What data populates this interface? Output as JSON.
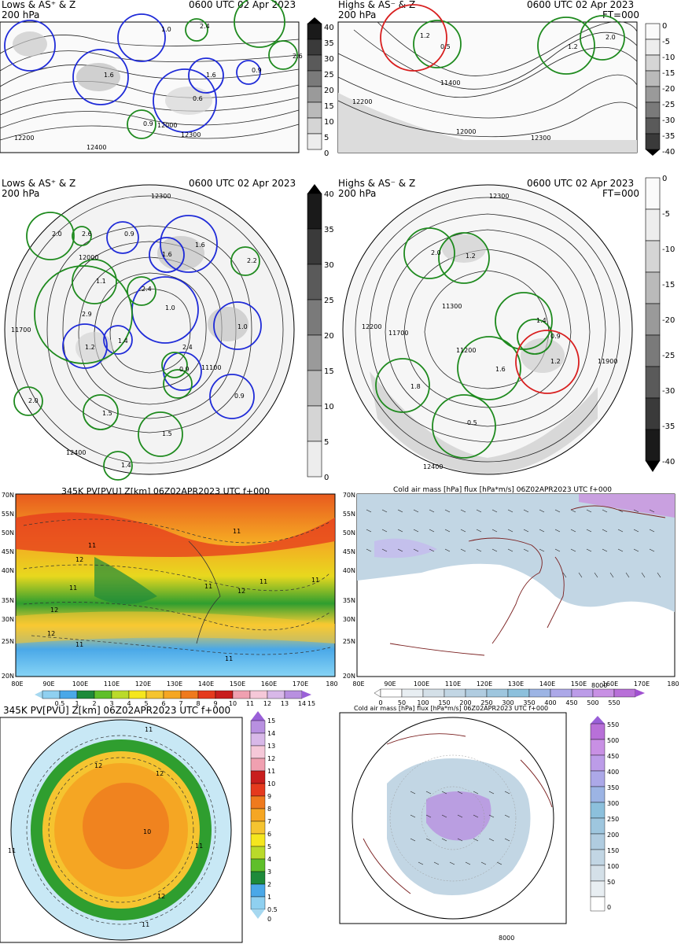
{
  "top_left": {
    "title_left": "Lows & AS⁺ & Z",
    "title_left2": "200 hPa",
    "title_right": "0600 UTC 02 Apr 2023",
    "cbar_ticks": [
      "40",
      "35",
      "30",
      "25",
      "20",
      "15",
      "10",
      "5",
      "0"
    ],
    "labels": [
      "1.0",
      "2.4",
      "0.6",
      "2.6",
      "1.6",
      "0.9",
      "1.6",
      "0.9",
      "12200",
      "12300",
      "12400",
      "12000"
    ]
  },
  "top_right": {
    "title_left": "Highs & AS⁻ & Z",
    "title_left2": "200 hPa",
    "title_right": "0600 UTC 02 Apr 2023",
    "title_right2": "FT=000",
    "cbar_ticks": [
      "0",
      "-5",
      "-10",
      "-15",
      "-20",
      "-25",
      "-30",
      "-35",
      "-40"
    ],
    "labels": [
      "1.2",
      "0.5",
      "2.0",
      "1.2",
      "11400",
      "12000",
      "12200",
      "12300"
    ]
  },
  "mid_left": {
    "title_left": "Lows & AS⁺ & Z",
    "title_left2": "200 hPa",
    "title_right": "0600 UTC 02 Apr 2023",
    "cbar_ticks": [
      "40",
      "35",
      "30",
      "25",
      "20",
      "15",
      "10",
      "5",
      "0"
    ],
    "labels": [
      "2.0",
      "2.6",
      "0.9",
      "1.6",
      "1.6",
      "2.2",
      "1.1",
      "2.4",
      "1.0",
      "2.9",
      "1.2",
      "1.4",
      "2.4",
      "1.0",
      "0.9",
      "2.0",
      "1.5",
      "0.9",
      "1.5",
      "1.4",
      "12300",
      "12000",
      "11700",
      "11100",
      "12400"
    ]
  },
  "mid_right": {
    "title_left": "Highs & AS⁻ & Z",
    "title_left2": "200 hPa",
    "title_right": "0600 UTC 02 Apr 2023",
    "title_right2": "FT=000",
    "cbar_ticks": [
      "0",
      "-5",
      "-10",
      "-15",
      "-20",
      "-25",
      "-30",
      "-35",
      "-40"
    ],
    "labels": [
      "2.0",
      "1.2",
      "1.4",
      "0.9",
      "1.2",
      "1.8",
      "1.6",
      "0.5",
      "12300",
      "12200",
      "11700",
      "11300",
      "11200",
      "11900",
      "12400"
    ]
  },
  "pv_map": {
    "title": "345K PV[PVU] Z[km] 06Z02APR2023 UTC f+000",
    "lat_ticks": [
      "70N",
      "55N",
      "50N",
      "45N",
      "40N",
      "35N",
      "30N",
      "25N",
      "20N"
    ],
    "lon_ticks": [
      "80E",
      "90E",
      "100E",
      "110E",
      "120E",
      "130E",
      "140E",
      "150E",
      "160E",
      "170E",
      "180"
    ],
    "cbar_ticks": [
      "0.5",
      "1",
      "2",
      "3",
      "4",
      "5",
      "6",
      "7",
      "8",
      "9",
      "10",
      "11",
      "12",
      "13",
      "14",
      "15"
    ],
    "contours": [
      "11",
      "11",
      "12",
      "11",
      "12",
      "11",
      "12",
      "11",
      "11",
      "11",
      "12",
      "11"
    ]
  },
  "cold_map": {
    "title": "Cold air mass [hPa] flux [hPa*m/s] 06Z02APR2023 UTC f+000",
    "lat_ticks": [
      "70N",
      "55N",
      "50N",
      "45N",
      "40N",
      "35N",
      "30N",
      "25N",
      "20N"
    ],
    "lon_ticks": [
      "80E",
      "90E",
      "100E",
      "110E",
      "120E",
      "130E",
      "140E",
      "150E",
      "160E",
      "170E",
      "180"
    ],
    "cbar_ticks": [
      "0",
      "50",
      "100",
      "150",
      "200",
      "250",
      "300",
      "350",
      "400",
      "450",
      "500",
      "550"
    ],
    "ref_vector": "8000"
  },
  "pv_polar": {
    "title": "345K PV[PVU] Z[km] 06Z02APR2023 UTC f+000",
    "cbar_ticks": [
      "15",
      "14",
      "13",
      "12",
      "11",
      "10",
      "9",
      "8",
      "7",
      "6",
      "5",
      "4",
      "3",
      "2",
      "1",
      "0.5",
      "0"
    ],
    "contours": [
      "11",
      "12",
      "12",
      "11",
      "10",
      "11",
      "12",
      "11"
    ]
  },
  "cold_polar": {
    "title": "Cold air mass [hPa] flux [hPa*m/s] 06Z02APR2023 UTC f+000",
    "cbar_ticks": [
      "550",
      "500",
      "450",
      "400",
      "350",
      "300",
      "250",
      "200",
      "150",
      "100",
      "50",
      "0"
    ],
    "ref_vector": "8000"
  },
  "colors": {
    "low_circle": "#1f2bd8",
    "high_circle": "#d81f1f",
    "as_circle": "#1e8a1e",
    "land_line": "#7a1f1f"
  }
}
